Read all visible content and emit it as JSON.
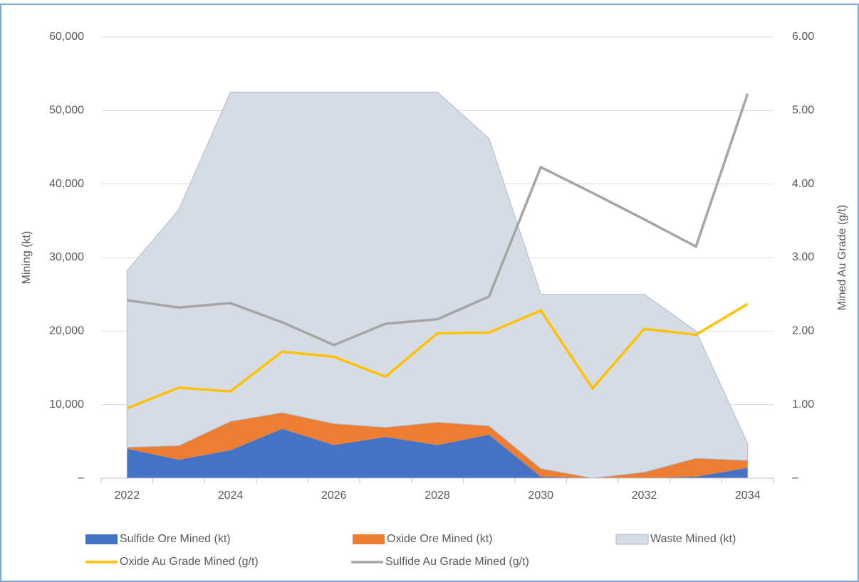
{
  "chart_data": {
    "type": "stacked-area-line",
    "categories": [
      "2022",
      null,
      "2024",
      null,
      "2026",
      null,
      "2028",
      null,
      "2030",
      null,
      "2032",
      null,
      "2034"
    ],
    "series": [
      {
        "name": "Sulfide Ore Mined (kt)",
        "color": "#4472c4",
        "kind": "area",
        "values": [
          4000,
          2500,
          3800,
          6700,
          4500,
          5600,
          4500,
          5900,
          200,
          0,
          0,
          200,
          1400
        ]
      },
      {
        "name": "Oxide Ore Mined (kt)",
        "color": "#ed7d31",
        "kind": "area",
        "values": [
          200,
          1900,
          3900,
          2200,
          2900,
          1300,
          3100,
          1200,
          1100,
          0,
          800,
          2500,
          1000
        ]
      },
      {
        "name": "Waste Mined (kt)",
        "color": "#d6dce5",
        "kind": "area",
        "values": [
          24000,
          32100,
          44800,
          43600,
          45100,
          45600,
          44900,
          39100,
          23700,
          25000,
          24200,
          17300,
          2300
        ]
      },
      {
        "name": "Oxide Au Grade Mined (g/t)",
        "color": "#ffc000",
        "kind": "line",
        "axis": "y2",
        "values": [
          0.95,
          1.23,
          1.18,
          1.72,
          1.65,
          1.38,
          1.97,
          1.98,
          2.28,
          1.22,
          2.03,
          1.95,
          2.37
        ]
      },
      {
        "name": "Sulfide Au Grade Mined (g/t)",
        "color": "#a5a5a5",
        "kind": "line",
        "axis": "y2",
        "values": [
          2.42,
          2.32,
          2.38,
          2.12,
          1.81,
          2.1,
          2.16,
          2.47,
          4.23,
          3.88,
          3.52,
          3.15,
          5.23
        ]
      }
    ],
    "y_label": "Mining (kt)",
    "y2_label": "Mined Au Grade (g/t)",
    "ylim": [
      0,
      60000
    ],
    "yticks": [
      {
        "value": 0,
        "label": "–"
      },
      {
        "value": 10000,
        "label": "10,000"
      },
      {
        "value": 20000,
        "label": "20,000"
      },
      {
        "value": 30000,
        "label": "30,000"
      },
      {
        "value": 40000,
        "label": "40,000"
      },
      {
        "value": 50000,
        "label": "50,000"
      },
      {
        "value": 60000,
        "label": "60,000"
      }
    ],
    "y2lim": [
      0,
      6
    ],
    "y2ticks": [
      {
        "value": 0,
        "label": "–"
      },
      {
        "value": 1,
        "label": "1.00"
      },
      {
        "value": 2,
        "label": "2.00"
      },
      {
        "value": 3,
        "label": "3.00"
      },
      {
        "value": 4,
        "label": "4.00"
      },
      {
        "value": 5,
        "label": "5.00"
      },
      {
        "value": 6,
        "label": "6.00"
      }
    ],
    "grid": true,
    "legend": "bottom"
  }
}
